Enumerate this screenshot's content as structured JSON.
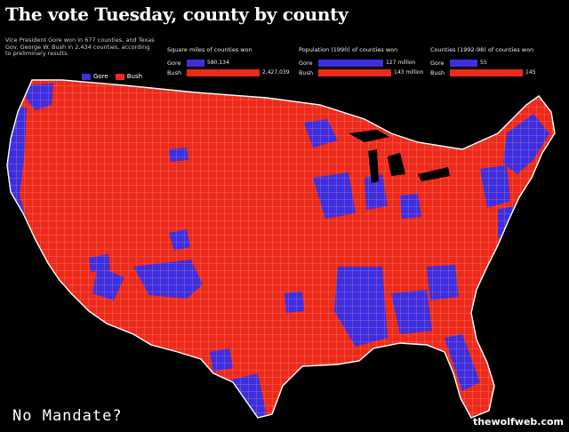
{
  "title": "The vote Tuesday, county by county",
  "intro": "Vice President Gore won in 677 counties, and Texas Gov. George W. Bush in 2,434 counties, according to preliminary results.",
  "legend": {
    "gore_label": "Gore",
    "bush_label": "Bush",
    "gore_color": "#3d2ee0",
    "bush_color": "#ee2a1a"
  },
  "stats": [
    {
      "heading": "Square miles of counties won",
      "gore": {
        "label": "Gore",
        "value": "580,134",
        "amount": 580134
      },
      "bush": {
        "label": "Bush",
        "value": "2,427,039",
        "amount": 2427039
      }
    },
    {
      "heading": "Population (1990) of counties won",
      "gore": {
        "label": "Gore",
        "value": "127 million",
        "amount": 127
      },
      "bush": {
        "label": "Bush",
        "value": "143 million",
        "amount": 143
      }
    },
    {
      "heading": "Counties (1992-98) of counties won",
      "gore": {
        "label": "Gore",
        "value": "55",
        "amount": 55
      },
      "bush": {
        "label": "Bush",
        "value": "145",
        "amount": 145
      }
    }
  ],
  "caption": "No Mandate?",
  "credit": "thewolfweb.com"
}
